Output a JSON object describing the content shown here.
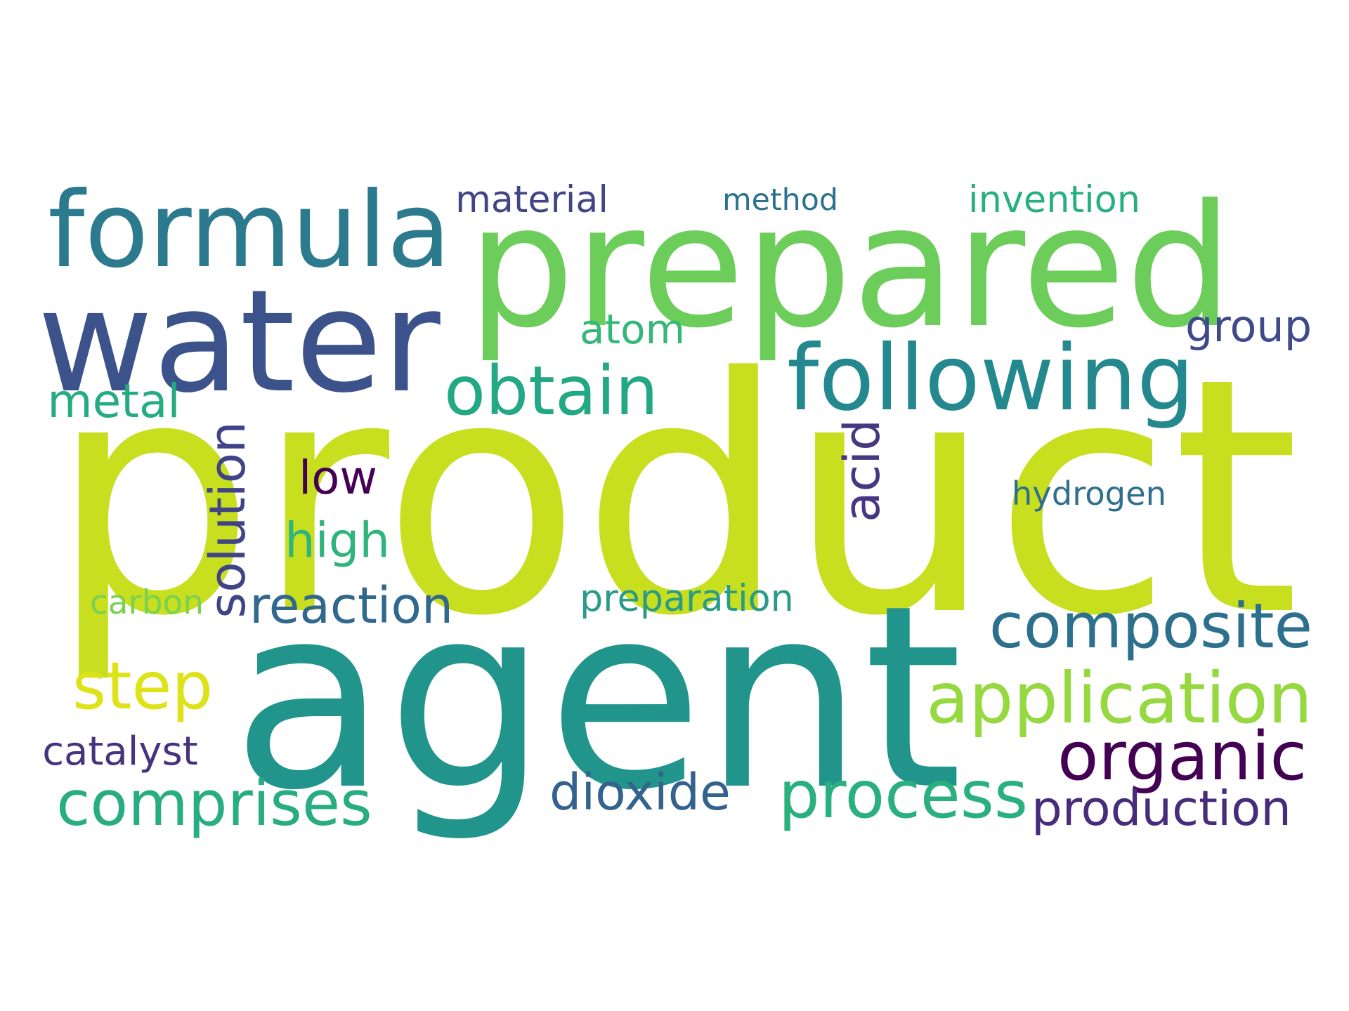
{
  "background": "#ffffff",
  "palette": [
    "#440154",
    "#472d7b",
    "#3b528b",
    "#2c728e",
    "#21918c",
    "#28ae80",
    "#5ec962",
    "#addc30",
    "#c8df20",
    "#dde318"
  ],
  "words": [
    {
      "text": "product",
      "weight": 1.0,
      "color": "#c8df20",
      "orientation": "horizontal"
    },
    {
      "text": "agent",
      "weight": 0.92,
      "color": "#21958b",
      "orientation": "horizontal"
    },
    {
      "text": "prepared",
      "weight": 0.55,
      "color": "#6ccd5a",
      "orientation": "horizontal"
    },
    {
      "text": "water",
      "weight": 0.48,
      "color": "#3b528b",
      "orientation": "horizontal"
    },
    {
      "text": "formula",
      "weight": 0.38,
      "color": "#2c7a8e",
      "orientation": "horizontal"
    },
    {
      "text": "following",
      "weight": 0.3,
      "color": "#23898e",
      "orientation": "horizontal"
    },
    {
      "text": "solution",
      "weight": 0.26,
      "color": "#404387",
      "orientation": "vertical"
    },
    {
      "text": "acid",
      "weight": 0.26,
      "color": "#453781",
      "orientation": "vertical"
    },
    {
      "text": "obtain",
      "weight": 0.24,
      "color": "#22a884",
      "orientation": "horizontal"
    },
    {
      "text": "composite",
      "weight": 0.23,
      "color": "#2d708e",
      "orientation": "horizontal"
    },
    {
      "text": "application",
      "weight": 0.23,
      "color": "#95d840",
      "orientation": "horizontal"
    },
    {
      "text": "organic",
      "weight": 0.22,
      "color": "#440154",
      "orientation": "horizontal"
    },
    {
      "text": "process",
      "weight": 0.22,
      "color": "#2ab07f",
      "orientation": "horizontal"
    },
    {
      "text": "comprises",
      "weight": 0.22,
      "color": "#27ad81",
      "orientation": "horizontal"
    },
    {
      "text": "step",
      "weight": 0.2,
      "color": "#dde318",
      "orientation": "horizontal"
    },
    {
      "text": "reaction",
      "weight": 0.18,
      "color": "#31688e",
      "orientation": "horizontal"
    },
    {
      "text": "production",
      "weight": 0.18,
      "color": "#472c7a",
      "orientation": "horizontal"
    },
    {
      "text": "high",
      "weight": 0.16,
      "color": "#2fb47c",
      "orientation": "horizontal"
    },
    {
      "text": "dioxide",
      "weight": 0.16,
      "color": "#33638d",
      "orientation": "horizontal"
    },
    {
      "text": "atom",
      "weight": 0.16,
      "color": "#35b779",
      "orientation": "horizontal"
    },
    {
      "text": "metal",
      "weight": 0.15,
      "color": "#25ab82",
      "orientation": "horizontal"
    },
    {
      "text": "group",
      "weight": 0.15,
      "color": "#3e4a89",
      "orientation": "horizontal"
    },
    {
      "text": "low",
      "weight": 0.14,
      "color": "#440154",
      "orientation": "horizontal"
    },
    {
      "text": "hydrogen",
      "weight": 0.13,
      "color": "#2e6e8e",
      "orientation": "horizontal"
    },
    {
      "text": "preparation",
      "weight": 0.13,
      "color": "#2a9a89",
      "orientation": "horizontal"
    },
    {
      "text": "material",
      "weight": 0.13,
      "color": "#414487",
      "orientation": "horizontal"
    },
    {
      "text": "method",
      "weight": 0.13,
      "color": "#2c728e",
      "orientation": "horizontal"
    },
    {
      "text": "invention",
      "weight": 0.13,
      "color": "#29af7f",
      "orientation": "horizontal"
    },
    {
      "text": "carbon",
      "weight": 0.12,
      "color": "#7ad151",
      "orientation": "horizontal"
    },
    {
      "text": "catalyst",
      "weight": 0.12,
      "color": "#46327e",
      "orientation": "horizontal"
    }
  ]
}
